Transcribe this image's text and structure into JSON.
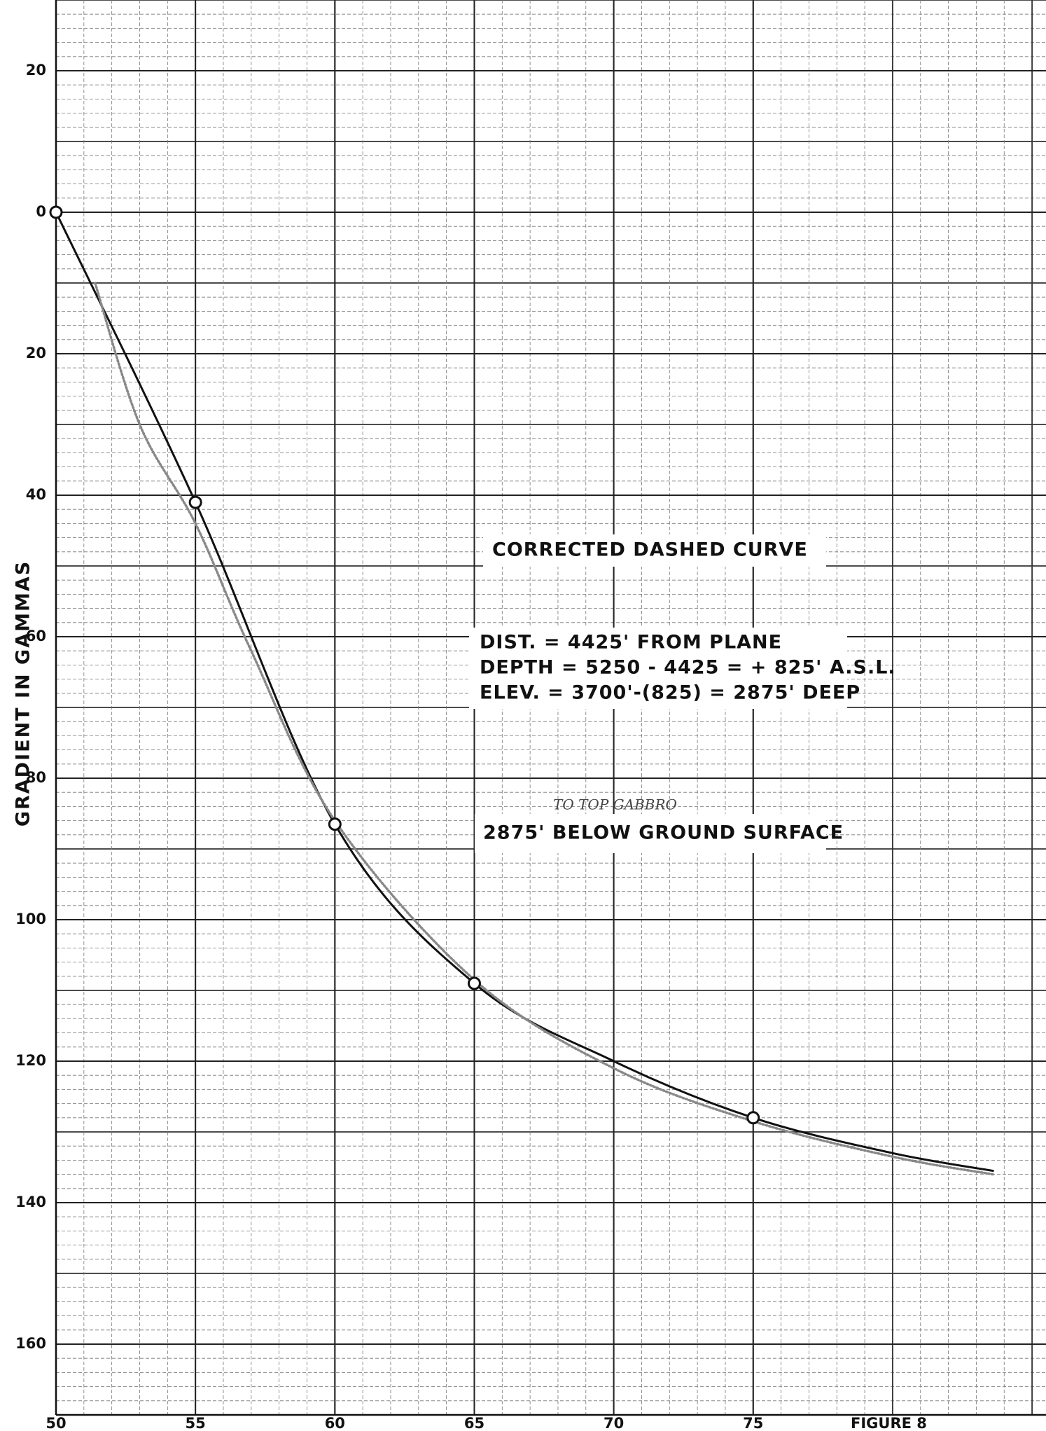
{
  "chart_data": {
    "type": "line",
    "y_label": "GRADIENT IN GAMMAS",
    "xlim": [
      50,
      85.5
    ],
    "xticks": [
      50,
      55,
      60,
      65,
      70,
      75
    ],
    "ylim": [
      -30,
      170
    ],
    "yticks": [
      {
        "value": -20,
        "label": "20"
      },
      0,
      20,
      40,
      60,
      80,
      100,
      120,
      140,
      160
    ],
    "y_inverted": true,
    "grid": true,
    "series": [
      {
        "style": "solid",
        "color": "#111111",
        "x": [
          50,
          55,
          60,
          65,
          70,
          75,
          80,
          83.6
        ],
        "values": [
          0,
          41,
          86.5,
          109,
          120,
          128,
          133,
          135.5
        ]
      },
      {
        "style": "dotted",
        "color": "#888888",
        "x": [
          51.4,
          53,
          55,
          57,
          60,
          65,
          70,
          75,
          80,
          83.6
        ],
        "values": [
          10,
          30,
          44,
          62,
          86,
          108.5,
          121,
          128.5,
          133.5,
          136
        ]
      },
      {
        "style": "marker",
        "color": "#111111",
        "x": [
          50,
          55,
          60,
          65,
          75
        ],
        "values": [
          0,
          41,
          86.5,
          109,
          128
        ]
      }
    ],
    "annotations": [
      "CORRECTED DASHED CURVE",
      "DIST.   = 4425' FROM PLANE",
      "DEPTH = 5250 - 4425 = + 825' A.S.L.",
      "ELEV.  = 3700'-(825) = 2875' DEEP",
      "TO TOP GABBRO",
      "2875' BELOW GROUND SURFACE",
      "FIGURE 8"
    ]
  }
}
